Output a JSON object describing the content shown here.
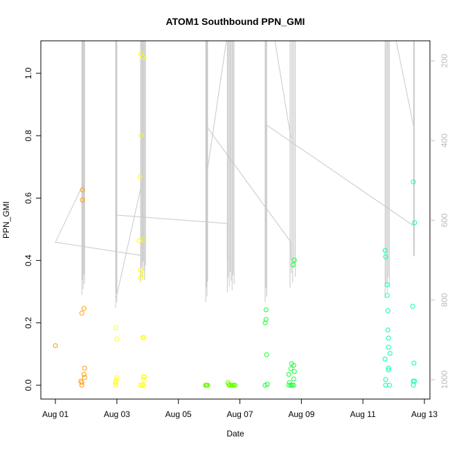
{
  "chart_data": {
    "type": "scatter",
    "title": "ATOM1 Southbound PPN_GMI",
    "xlabel": "Date",
    "ylabel": "PPN_GMI",
    "xlim_days_since_aug01": [
      -0.45,
      12.2
    ],
    "ylim": [
      -0.02,
      1.1
    ],
    "x_ticks": [
      {
        "day": 0,
        "label": "Aug 01"
      },
      {
        "day": 2,
        "label": "Aug 03"
      },
      {
        "day": 4,
        "label": "Aug 05"
      },
      {
        "day": 6,
        "label": "Aug 07"
      },
      {
        "day": 8,
        "label": "Aug 09"
      },
      {
        "day": 10,
        "label": "Aug 11"
      },
      {
        "day": 12,
        "label": "Aug 13"
      }
    ],
    "y_ticks": [
      {
        "value": 0.0,
        "label": "0.0"
      },
      {
        "value": 0.2,
        "label": "0.2"
      },
      {
        "value": 0.4,
        "label": "0.4"
      },
      {
        "value": 0.6,
        "label": "0.6"
      },
      {
        "value": 0.8,
        "label": "0.8"
      },
      {
        "value": 1.0,
        "label": "1.0"
      }
    ],
    "right_axis": {
      "reversed": true,
      "range": [
        150,
        1049
      ],
      "ticks": [
        {
          "value": 200,
          "label": "200"
        },
        {
          "value": 400,
          "label": "400"
        },
        {
          "value": 600,
          "label": "600"
        },
        {
          "value": 800,
          "label": "800"
        },
        {
          "value": 1000,
          "label": "1000"
        }
      ],
      "color": "#bbbbbb"
    },
    "grid": false,
    "colors": {
      "orange": "#FF9900",
      "yellow": "#FFFF00",
      "lime": "#66FF00",
      "green": "#11FF33",
      "cyan": "#00FFAA",
      "track": "#c8c8c8"
    },
    "points": [
      [
        0.0,
        0.127,
        "orange"
      ],
      [
        0.88,
        0.626,
        "orange"
      ],
      [
        0.88,
        0.594,
        "orange"
      ],
      [
        0.93,
        0.246,
        "orange"
      ],
      [
        0.86,
        0.231,
        "orange"
      ],
      [
        0.95,
        0.055,
        "orange"
      ],
      [
        0.93,
        0.035,
        "orange"
      ],
      [
        0.95,
        0.025,
        "orange"
      ],
      [
        0.83,
        0.013,
        "orange"
      ],
      [
        0.86,
        0.009,
        "orange"
      ],
      [
        0.86,
        0.0,
        "orange"
      ],
      [
        1.96,
        0.184,
        "yellow"
      ],
      [
        2.0,
        0.148,
        "yellow"
      ],
      [
        2.0,
        0.024,
        "yellow"
      ],
      [
        1.98,
        0.015,
        "yellow"
      ],
      [
        1.96,
        0.009,
        "yellow"
      ],
      [
        1.96,
        0.0,
        "yellow"
      ],
      [
        2.77,
        1.062,
        "yellow"
      ],
      [
        2.84,
        1.051,
        "yellow"
      ],
      [
        2.79,
        0.8,
        "yellow"
      ],
      [
        2.75,
        0.667,
        "yellow"
      ],
      [
        2.72,
        0.463,
        "yellow"
      ],
      [
        2.88,
        0.466,
        "yellow"
      ],
      [
        2.77,
        0.37,
        "yellow"
      ],
      [
        2.82,
        0.355,
        "yellow"
      ],
      [
        2.77,
        0.344,
        "yellow"
      ],
      [
        2.84,
        0.153,
        "yellow"
      ],
      [
        2.88,
        0.153,
        "yellow"
      ],
      [
        2.86,
        0.027,
        "yellow"
      ],
      [
        2.9,
        0.027,
        "yellow"
      ],
      [
        2.88,
        0.016,
        "yellow"
      ],
      [
        2.77,
        0.0,
        "yellow"
      ],
      [
        2.82,
        0.0,
        "yellow"
      ],
      [
        2.86,
        0.0,
        "yellow"
      ],
      [
        4.88,
        0.0,
        "lime"
      ],
      [
        4.91,
        0.0,
        "lime"
      ],
      [
        4.93,
        0.0,
        "lime"
      ],
      [
        4.95,
        0.0,
        "lime"
      ],
      [
        5.61,
        0.009,
        "lime"
      ],
      [
        5.63,
        0.003,
        "lime"
      ],
      [
        5.66,
        0.0,
        "lime"
      ],
      [
        5.7,
        0.0,
        "lime"
      ],
      [
        5.74,
        0.0,
        "lime"
      ],
      [
        5.77,
        0.0,
        "lime"
      ],
      [
        5.81,
        0.0,
        "lime"
      ],
      [
        5.84,
        0.0,
        "lime"
      ],
      [
        6.85,
        0.242,
        "green"
      ],
      [
        6.85,
        0.211,
        "green"
      ],
      [
        6.82,
        0.2,
        "green"
      ],
      [
        6.87,
        0.098,
        "green"
      ],
      [
        6.82,
        0.0,
        "green"
      ],
      [
        6.89,
        0.003,
        "green"
      ],
      [
        7.77,
        0.401,
        "green"
      ],
      [
        7.73,
        0.386,
        "green"
      ],
      [
        7.68,
        0.069,
        "green"
      ],
      [
        7.75,
        0.064,
        "green"
      ],
      [
        7.66,
        0.053,
        "green"
      ],
      [
        7.77,
        0.044,
        "green"
      ],
      [
        7.59,
        0.035,
        "green"
      ],
      [
        7.75,
        0.02,
        "green"
      ],
      [
        7.61,
        0.009,
        "green"
      ],
      [
        7.66,
        0.0,
        "green"
      ],
      [
        7.59,
        0.0,
        "green"
      ],
      [
        7.7,
        0.0,
        "green"
      ],
      [
        7.75,
        0.0,
        "green"
      ],
      [
        10.72,
        0.432,
        "cyan"
      ],
      [
        10.74,
        0.412,
        "cyan"
      ],
      [
        10.79,
        0.322,
        "cyan"
      ],
      [
        10.79,
        0.288,
        "cyan"
      ],
      [
        10.81,
        0.239,
        "cyan"
      ],
      [
        10.81,
        0.177,
        "cyan"
      ],
      [
        10.83,
        0.151,
        "cyan"
      ],
      [
        10.83,
        0.122,
        "cyan"
      ],
      [
        10.88,
        0.102,
        "cyan"
      ],
      [
        10.72,
        0.084,
        "cyan"
      ],
      [
        10.83,
        0.055,
        "cyan"
      ],
      [
        10.83,
        0.049,
        "cyan"
      ],
      [
        10.74,
        0.018,
        "cyan"
      ],
      [
        10.74,
        0.0,
        "cyan"
      ],
      [
        10.86,
        0.0,
        "cyan"
      ],
      [
        11.64,
        0.652,
        "cyan"
      ],
      [
        11.68,
        0.521,
        "cyan"
      ],
      [
        11.62,
        0.253,
        "cyan"
      ],
      [
        11.66,
        0.071,
        "cyan"
      ],
      [
        11.64,
        0.013,
        "cyan"
      ],
      [
        11.68,
        0.013,
        "cyan"
      ],
      [
        11.64,
        0.0,
        "cyan"
      ]
    ],
    "depth_casts": [
      {
        "day_start": 0.86,
        "day_end": 0.95,
        "depth_min": 150,
        "depth_max": 787,
        "lines": 5
      },
      {
        "day_start": 1.96,
        "day_end": 2.0,
        "depth_min": 150,
        "depth_max": 820,
        "lines": 3
      },
      {
        "day_start": 2.77,
        "day_end": 2.93,
        "depth_min": 150,
        "depth_max": 755,
        "lines": 7
      },
      {
        "day_start": 4.89,
        "day_end": 4.95,
        "depth_min": 150,
        "depth_max": 805,
        "lines": 4
      },
      {
        "day_start": 5.59,
        "day_end": 5.81,
        "depth_min": 150,
        "depth_max": 780,
        "lines": 8
      },
      {
        "day_start": 6.82,
        "day_end": 6.87,
        "depth_min": 150,
        "depth_max": 806,
        "lines": 3
      },
      {
        "day_start": 7.63,
        "day_end": 7.8,
        "depth_min": 150,
        "depth_max": 770,
        "lines": 5
      },
      {
        "day_start": 10.72,
        "day_end": 10.86,
        "depth_min": 150,
        "depth_max": 795,
        "lines": 5
      },
      {
        "day_start": 11.65,
        "day_end": 11.67,
        "depth_min": 150,
        "depth_max": 690,
        "lines": 2
      }
    ],
    "depth_track": [
      [
        [
          0.92,
          507
        ],
        [
          0.0,
          655
        ],
        [
          2.77,
          688
        ],
        [
          2.77,
          750
        ]
      ],
      [
        [
          1.98,
          794
        ],
        [
          2.81,
          507
        ]
      ],
      [
        [
          2.0,
          587
        ],
        [
          5.59,
          608
        ],
        [
          5.59,
          702
        ]
      ],
      [
        [
          4.9,
          497
        ],
        [
          5.56,
          150
        ]
      ],
      [
        [
          4.95,
          368
        ],
        [
          7.66,
          655
        ],
        [
          7.66,
          700
        ]
      ],
      [
        [
          7.14,
          150
        ],
        [
          7.66,
          394
        ]
      ],
      [
        [
          6.87,
          790
        ],
        [
          6.87,
          361
        ],
        [
          11.67,
          615
        ],
        [
          11.67,
          690
        ]
      ],
      [
        [
          11.08,
          150
        ],
        [
          11.67,
          372
        ]
      ]
    ]
  }
}
